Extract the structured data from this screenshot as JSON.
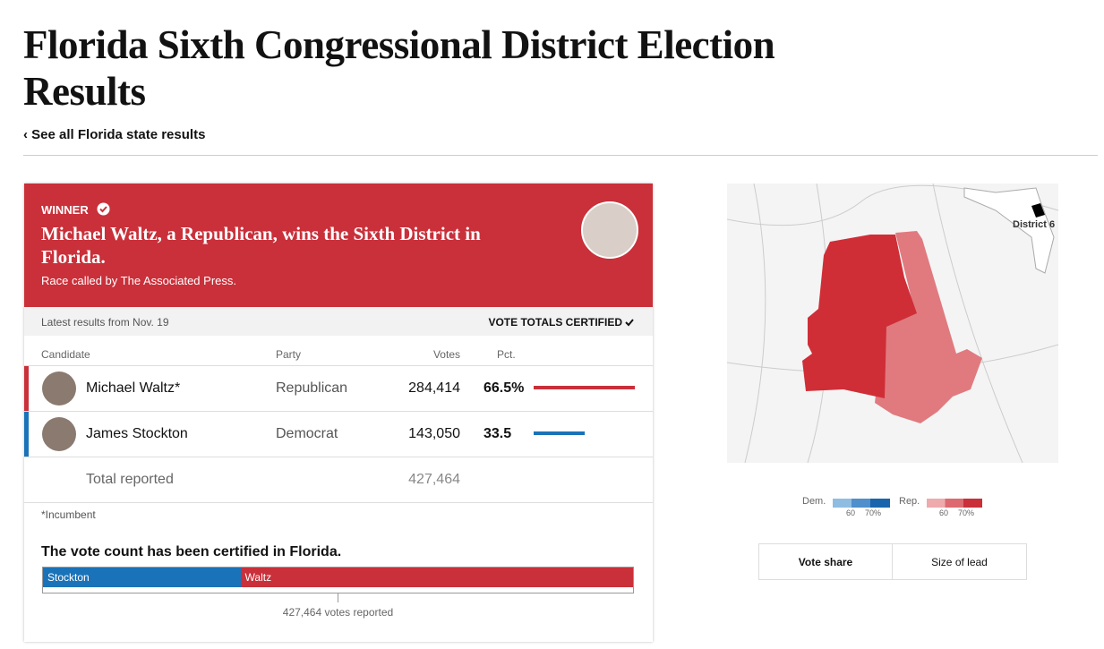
{
  "header": {
    "title": "Florida Sixth Congressional District Election Results",
    "link": "‹ See all Florida state results"
  },
  "winner": {
    "badge": "WINNER",
    "headline": "Michael Waltz, a Republican, wins the Sixth District in Florida.",
    "called": "Race called by The Associated Press."
  },
  "status": {
    "latest": "Latest results from Nov. 19",
    "certified": "VOTE TOTALS CERTIFIED"
  },
  "table": {
    "columns": [
      "Candidate",
      "Party",
      "Votes",
      "Pct."
    ],
    "rows": [
      {
        "candidate": "Michael Waltz*",
        "party": "Republican",
        "color": "#c9303a",
        "votes": {
          "value": 284414,
          "label": "284,414"
        },
        "pct": {
          "value": 66.5,
          "label": "66.5%"
        }
      },
      {
        "candidate": "James Stockton",
        "party": "Democrat",
        "color": "#1a73b8",
        "votes": {
          "value": 143050,
          "label": "143,050"
        },
        "pct": {
          "value": 33.5,
          "label": "33.5"
        }
      }
    ],
    "total": {
      "label": "Total reported",
      "votes": {
        "value": 427464,
        "label": "427,464"
      }
    }
  },
  "note": "*Incumbent",
  "summary": {
    "title": "The vote count has been certified in Florida.",
    "segments": [
      {
        "name": "Stockton",
        "row": 1
      },
      {
        "name": "Waltz",
        "row": 0
      }
    ],
    "reported": "427,464 votes reported"
  },
  "map": {
    "inset_label": "District 6",
    "legend": {
      "dem": "Dem.",
      "rep": "Rep.",
      "ticks": [
        "60",
        "70%"
      ]
    }
  },
  "tabs": [
    "Vote share",
    "Size of lead"
  ]
}
